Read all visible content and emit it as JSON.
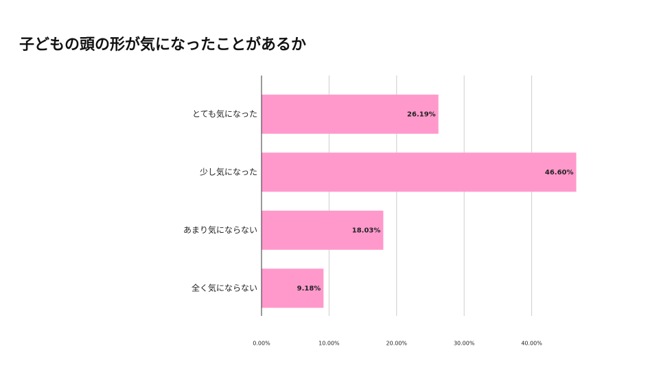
{
  "chart_data": {
    "type": "bar",
    "orientation": "horizontal",
    "title": "子どもの頭の形が気になったことがあるか",
    "categories": [
      "とても気になった",
      "少し気になった",
      "あまり気にならない",
      "全く気にならない"
    ],
    "values": [
      26.19,
      46.6,
      18.03,
      9.18
    ],
    "value_labels": [
      "26.19%",
      "46.60%",
      "18.03%",
      "9.18%"
    ],
    "color": "#ff99cc",
    "xlim": [
      0,
      50
    ],
    "xticks": [
      {
        "value": 0,
        "label": "0.00%"
      },
      {
        "value": 10,
        "label": "10.00%"
      },
      {
        "value": 20,
        "label": "20.00%"
      },
      {
        "value": 30,
        "label": "30.00%"
      },
      {
        "value": 40,
        "label": "40.00%"
      }
    ],
    "grid": true
  }
}
